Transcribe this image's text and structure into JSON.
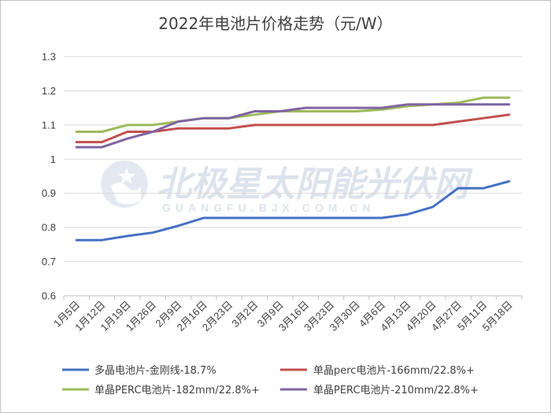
{
  "chart_data": {
    "type": "line",
    "title": "2022年电池片价格走势（元/W）",
    "categories": [
      "1月5日",
      "1月12日",
      "1月19日",
      "1月26日",
      "2月9日",
      "2月16日",
      "2月23日",
      "3月2日",
      "3月9日",
      "3月16日",
      "3月23日",
      "3月30日",
      "4月6日",
      "4月13日",
      "4月20日",
      "4月27日",
      "5月11日",
      "5月18日"
    ],
    "ylim": [
      0.6,
      1.3
    ],
    "yticks": [
      "0.6",
      "0.7",
      "0.8",
      "0.9",
      "1",
      "1.1",
      "1.2",
      "1.3"
    ],
    "grid": true,
    "legend_position": "bottom",
    "series": [
      {
        "name": "多晶电池片-金刚线-18.7%",
        "color": "#4472c4",
        "values": [
          0.763,
          0.763,
          0.775,
          0.785,
          0.805,
          0.828,
          0.828,
          0.828,
          0.828,
          0.828,
          0.828,
          0.828,
          0.828,
          0.838,
          0.86,
          0.915,
          0.915,
          0.935
        ]
      },
      {
        "name": "单晶perc电池片-166mm/22.8%+",
        "color": "#c0504d",
        "values": [
          1.05,
          1.05,
          1.08,
          1.08,
          1.09,
          1.09,
          1.09,
          1.1,
          1.1,
          1.1,
          1.1,
          1.1,
          1.1,
          1.1,
          1.1,
          1.11,
          1.12,
          1.13
        ]
      },
      {
        "name": "单晶PERC电池片-182mm/22.8%+",
        "color": "#9bbb59",
        "values": [
          1.08,
          1.08,
          1.1,
          1.1,
          1.11,
          1.12,
          1.12,
          1.13,
          1.14,
          1.14,
          1.14,
          1.14,
          1.145,
          1.155,
          1.16,
          1.165,
          1.18,
          1.18
        ]
      },
      {
        "name": "单晶PERC电池片-210mm/22.8%+",
        "color": "#8064a2",
        "values": [
          1.035,
          1.035,
          1.06,
          1.08,
          1.11,
          1.12,
          1.12,
          1.14,
          1.14,
          1.15,
          1.15,
          1.15,
          1.15,
          1.16,
          1.16,
          1.16,
          1.16,
          1.16
        ]
      }
    ]
  },
  "watermark": {
    "text": "北极星太阳能光伏网",
    "sub": "GUANGFU.BJX.COM.CN",
    "icon": "polaris-logo-icon"
  }
}
